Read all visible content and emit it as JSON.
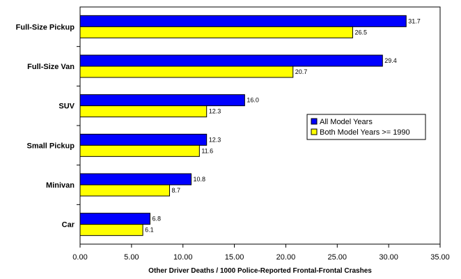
{
  "chart_data": {
    "type": "bar",
    "orientation": "horizontal",
    "categories": [
      "Full-Size Pickup",
      "Full-Size Van",
      "SUV",
      "Small Pickup",
      "Minivan",
      "Car"
    ],
    "series": [
      {
        "name": "All Model Years",
        "values": [
          31.7,
          29.4,
          16.0,
          12.3,
          10.8,
          6.8
        ],
        "color": "#0000ff"
      },
      {
        "name": "Both Model Years >= 1990",
        "values": [
          26.5,
          20.7,
          12.3,
          11.6,
          8.7,
          6.1
        ],
        "color": "#ffff00"
      }
    ],
    "value_labels": [
      [
        "31.7",
        "29.4",
        "16.0",
        "12.3",
        "10.8",
        "6.8"
      ],
      [
        "26.5",
        "20.7",
        "12.3",
        "11.6",
        "8.7",
        "6.1"
      ]
    ],
    "xlabel": "Other Driver Deaths / 1000 Police-Reported Frontal-Frontal Crashes",
    "ylabel": "",
    "title": "",
    "xlim": [
      0,
      35
    ],
    "xticks": [
      "0.00",
      "5.00",
      "10.00",
      "15.00",
      "20.00",
      "25.00",
      "30.00",
      "35.00"
    ],
    "grid": false,
    "legend_position": "right-middle"
  }
}
